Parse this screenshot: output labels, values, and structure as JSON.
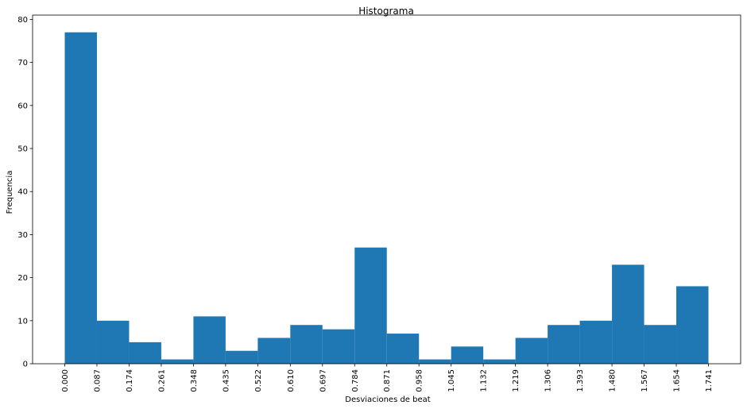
{
  "chart_data": {
    "type": "bar",
    "title": "Histograma",
    "xlabel": "Desviaciones de beat",
    "ylabel": "Frequencia",
    "bin_edges": [
      0.0,
      0.087,
      0.174,
      0.261,
      0.348,
      0.435,
      0.522,
      0.61,
      0.697,
      0.784,
      0.871,
      0.958,
      1.045,
      1.132,
      1.219,
      1.306,
      1.393,
      1.48,
      1.567,
      1.654,
      1.741
    ],
    "x_tick_labels": [
      "0.000",
      "0.087",
      "0.174",
      "0.261",
      "0.348",
      "0.435",
      "0.522",
      "0.610",
      "0.697",
      "0.784",
      "0.871",
      "0.958",
      "1.045",
      "1.132",
      "1.219",
      "1.306",
      "1.393",
      "1.480",
      "1.567",
      "1.654",
      "1.741"
    ],
    "values": [
      77,
      10,
      5,
      1,
      11,
      3,
      6,
      9,
      8,
      27,
      7,
      1,
      4,
      1,
      6,
      9,
      10,
      23,
      9,
      18
    ],
    "y_ticks": [
      0,
      10,
      20,
      30,
      40,
      50,
      60,
      70,
      80
    ],
    "ylim": [
      0,
      81
    ],
    "bar_color": "#1f77b4",
    "grid": false
  }
}
